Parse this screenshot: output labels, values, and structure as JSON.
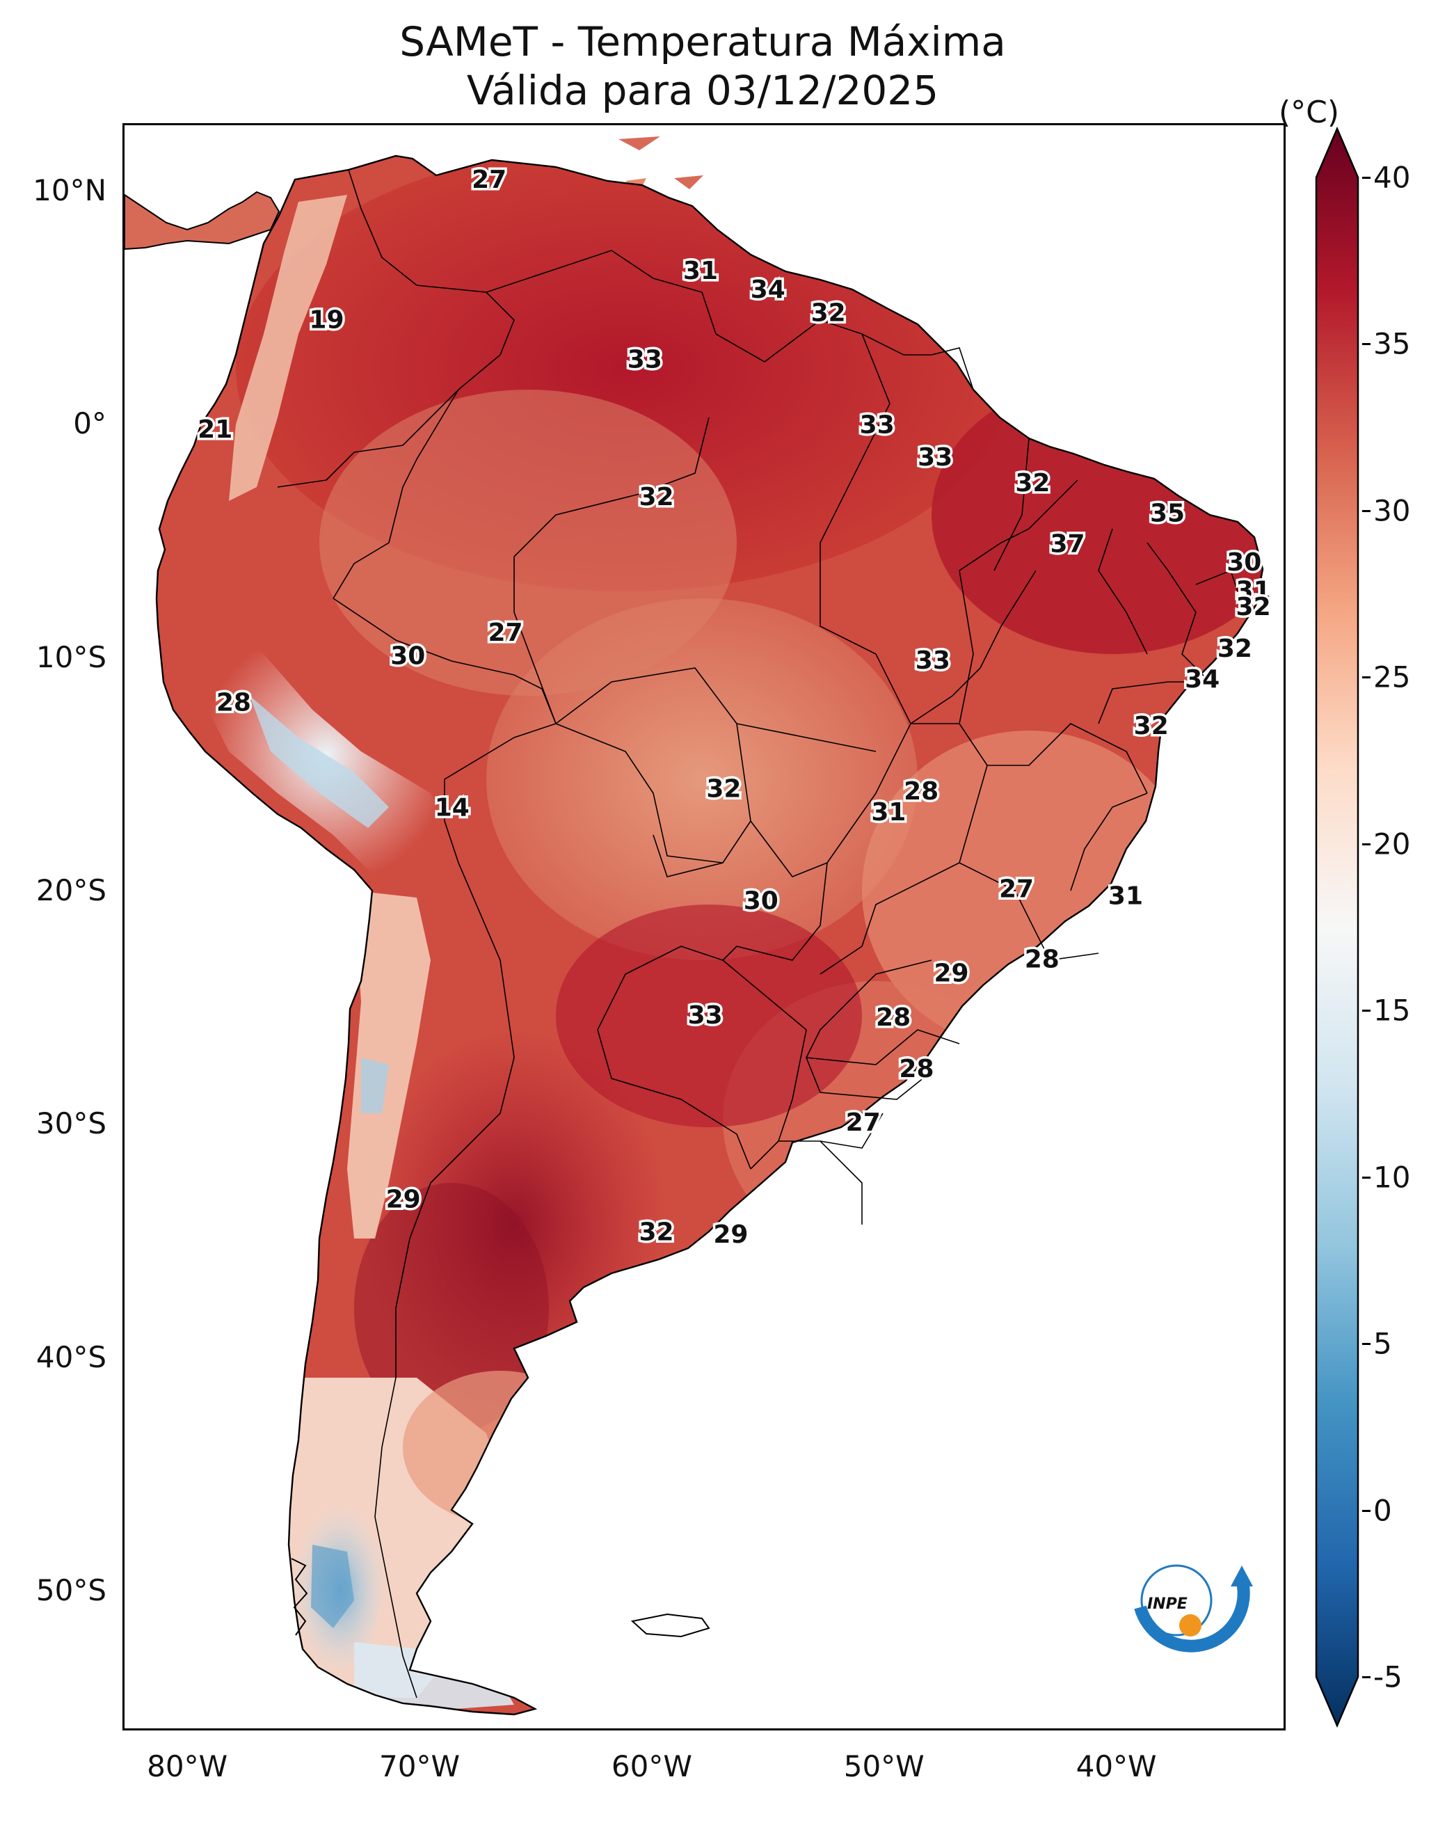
{
  "title": {
    "line1": "SAMeT - Temperatura Máxima",
    "line2": "Válida para 03/12/2025"
  },
  "axes": {
    "latitude_labels": [
      "10°N",
      "0°",
      "10°S",
      "20°S",
      "30°S",
      "40°S",
      "50°S"
    ],
    "longitude_labels": [
      "80°W",
      "70°W",
      "60°W",
      "50°W",
      "40°W"
    ],
    "latitude_values": [
      10,
      0,
      -10,
      -20,
      -30,
      -40,
      -50
    ],
    "longitude_values": [
      -80,
      -70,
      -60,
      -50,
      -40
    ],
    "lon_range": [
      -82.7,
      -32.8
    ],
    "lat_range": [
      -55.9,
      12.8
    ]
  },
  "colorbar": {
    "unit": "(°C)",
    "tick_labels": [
      "40",
      "35",
      "30",
      "25",
      "20",
      "15",
      "10",
      "5",
      "0",
      "-5"
    ],
    "tick_values": [
      40,
      35,
      30,
      25,
      20,
      15,
      10,
      5,
      0,
      -5
    ],
    "range": [
      -5,
      40
    ],
    "colors": [
      "#053061",
      "#2166ac",
      "#4393c3",
      "#92c5de",
      "#d1e5f0",
      "#f7f7f7",
      "#fddbc7",
      "#f4a582",
      "#d6604d",
      "#b2182b",
      "#67001f"
    ]
  },
  "logo": {
    "text": "INPE",
    "colors": {
      "arc": "#1f7ac2",
      "dot": "#f0961e"
    }
  },
  "stations": [
    {
      "label": "27",
      "lon": -67.0,
      "lat": 10.5
    },
    {
      "label": "19",
      "lon": -74.0,
      "lat": 4.5
    },
    {
      "label": "31",
      "lon": -57.9,
      "lat": 6.6
    },
    {
      "label": "34",
      "lon": -55.0,
      "lat": 5.8
    },
    {
      "label": "32",
      "lon": -52.4,
      "lat": 4.8
    },
    {
      "label": "33",
      "lon": -60.3,
      "lat": 2.8
    },
    {
      "label": "21",
      "lon": -78.8,
      "lat": -0.2
    },
    {
      "label": "33",
      "lon": -50.3,
      "lat": 0.0
    },
    {
      "label": "33",
      "lon": -47.8,
      "lat": -1.4
    },
    {
      "label": "32",
      "lon": -59.8,
      "lat": -3.1
    },
    {
      "label": "32",
      "lon": -43.6,
      "lat": -2.5
    },
    {
      "label": "35",
      "lon": -37.8,
      "lat": -3.8
    },
    {
      "label": "37",
      "lon": -42.1,
      "lat": -5.1
    },
    {
      "label": "30",
      "lon": -34.5,
      "lat": -5.9
    },
    {
      "label": "31",
      "lon": -34.1,
      "lat": -7.1
    },
    {
      "label": "32",
      "lon": -34.1,
      "lat": -7.8
    },
    {
      "label": "27",
      "lon": -66.3,
      "lat": -8.9
    },
    {
      "label": "30",
      "lon": -70.5,
      "lat": -9.9
    },
    {
      "label": "33",
      "lon": -47.9,
      "lat": -10.1
    },
    {
      "label": "32",
      "lon": -34.9,
      "lat": -9.6
    },
    {
      "label": "34",
      "lon": -36.3,
      "lat": -10.9
    },
    {
      "label": "28",
      "lon": -78.0,
      "lat": -11.9
    },
    {
      "label": "32",
      "lon": -38.5,
      "lat": -12.9
    },
    {
      "label": "14",
      "lon": -68.6,
      "lat": -16.4
    },
    {
      "label": "32",
      "lon": -56.9,
      "lat": -15.6
    },
    {
      "label": "28",
      "lon": -48.4,
      "lat": -15.7
    },
    {
      "label": "31",
      "lon": -49.8,
      "lat": -16.6
    },
    {
      "label": "27",
      "lon": -44.3,
      "lat": -19.9
    },
    {
      "label": "31",
      "lon": -39.6,
      "lat": -20.2
    },
    {
      "label": "30",
      "lon": -55.3,
      "lat": -20.4
    },
    {
      "label": "28",
      "lon": -43.2,
      "lat": -22.9
    },
    {
      "label": "29",
      "lon": -47.1,
      "lat": -23.5
    },
    {
      "label": "33",
      "lon": -57.7,
      "lat": -25.3
    },
    {
      "label": "28",
      "lon": -49.6,
      "lat": -25.4
    },
    {
      "label": "28",
      "lon": -48.6,
      "lat": -27.6
    },
    {
      "label": "27",
      "lon": -50.9,
      "lat": -29.9
    },
    {
      "label": "29",
      "lon": -70.7,
      "lat": -33.2
    },
    {
      "label": "32",
      "lon": -59.8,
      "lat": -34.6
    },
    {
      "label": "29",
      "lon": -56.6,
      "lat": -34.7
    }
  ]
}
